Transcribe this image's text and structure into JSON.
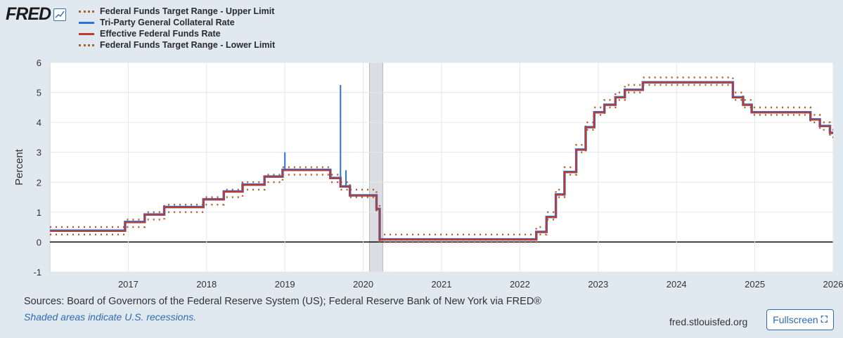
{
  "logo": {
    "text": "FRED"
  },
  "legend": [
    {
      "label": "Federal Funds Target Range - Upper Limit",
      "style": "dotted",
      "color": "#b0602e"
    },
    {
      "label": "Tri-Party General Collateral Rate",
      "style": "solid",
      "color": "#2f6fd6"
    },
    {
      "label": "Effective Federal Funds Rate",
      "style": "solid",
      "color": "#c0392b"
    },
    {
      "label": "Federal Funds Target Range - Lower Limit",
      "style": "dotted",
      "color": "#b0602e"
    }
  ],
  "footer": {
    "sources": "Sources: Board of Governors of the Federal Reserve System (US); Federal Reserve Bank of New York via FRED®",
    "recession_note": "Shaded areas indicate U.S. recessions.",
    "site": "fred.stlouisfed.org",
    "fullscreen_label": "Fullscreen"
  },
  "chart_data": {
    "type": "line",
    "ylabel": "Percent",
    "xlim": [
      2016.0,
      2026.0
    ],
    "ylim": [
      -1,
      6
    ],
    "yticks": [
      "-1",
      "0",
      "1",
      "2",
      "3",
      "4",
      "5",
      "6"
    ],
    "xticks": [
      "2017",
      "2018",
      "2019",
      "2020",
      "2021",
      "2022",
      "2023",
      "2024",
      "2025",
      "2026"
    ],
    "recessions": [
      [
        2020.08,
        2020.25
      ]
    ],
    "rate_steps": [
      {
        "t": 2016.0,
        "upper": 0.5,
        "lower": 0.25,
        "effr": 0.37
      },
      {
        "t": 2016.96,
        "upper": 0.75,
        "lower": 0.5,
        "effr": 0.66
      },
      {
        "t": 2017.21,
        "upper": 1.0,
        "lower": 0.75,
        "effr": 0.91
      },
      {
        "t": 2017.46,
        "upper": 1.25,
        "lower": 1.0,
        "effr": 1.16
      },
      {
        "t": 2017.96,
        "upper": 1.5,
        "lower": 1.25,
        "effr": 1.42
      },
      {
        "t": 2018.22,
        "upper": 1.75,
        "lower": 1.5,
        "effr": 1.68
      },
      {
        "t": 2018.46,
        "upper": 2.0,
        "lower": 1.75,
        "effr": 1.91
      },
      {
        "t": 2018.74,
        "upper": 2.25,
        "lower": 2.0,
        "effr": 2.18
      },
      {
        "t": 2018.97,
        "upper": 2.5,
        "lower": 2.25,
        "effr": 2.4
      },
      {
        "t": 2019.58,
        "upper": 2.25,
        "lower": 2.0,
        "effr": 2.13
      },
      {
        "t": 2019.71,
        "upper": 2.0,
        "lower": 1.75,
        "effr": 1.85
      },
      {
        "t": 2019.83,
        "upper": 1.75,
        "lower": 1.5,
        "effr": 1.55
      },
      {
        "t": 2020.17,
        "upper": 1.25,
        "lower": 1.0,
        "effr": 1.1
      },
      {
        "t": 2020.21,
        "upper": 0.25,
        "lower": 0.0,
        "effr": 0.08
      },
      {
        "t": 2022.21,
        "upper": 0.5,
        "lower": 0.25,
        "effr": 0.33
      },
      {
        "t": 2022.34,
        "upper": 1.0,
        "lower": 0.75,
        "effr": 0.83
      },
      {
        "t": 2022.46,
        "upper": 1.75,
        "lower": 1.5,
        "effr": 1.58
      },
      {
        "t": 2022.57,
        "upper": 2.5,
        "lower": 2.25,
        "effr": 2.33
      },
      {
        "t": 2022.72,
        "upper": 3.25,
        "lower": 3.0,
        "effr": 3.08
      },
      {
        "t": 2022.84,
        "upper": 4.0,
        "lower": 3.75,
        "effr": 3.83
      },
      {
        "t": 2022.95,
        "upper": 4.5,
        "lower": 4.25,
        "effr": 4.33
      },
      {
        "t": 2023.08,
        "upper": 4.75,
        "lower": 4.5,
        "effr": 4.58
      },
      {
        "t": 2023.22,
        "upper": 5.0,
        "lower": 4.75,
        "effr": 4.83
      },
      {
        "t": 2023.34,
        "upper": 5.25,
        "lower": 5.0,
        "effr": 5.08
      },
      {
        "t": 2023.57,
        "upper": 5.5,
        "lower": 5.25,
        "effr": 5.33
      },
      {
        "t": 2024.72,
        "upper": 5.0,
        "lower": 4.75,
        "effr": 4.83
      },
      {
        "t": 2024.85,
        "upper": 4.75,
        "lower": 4.5,
        "effr": 4.58
      },
      {
        "t": 2024.96,
        "upper": 4.5,
        "lower": 4.25,
        "effr": 4.33
      },
      {
        "t": 2025.71,
        "upper": 4.25,
        "lower": 4.0,
        "effr": 4.09
      },
      {
        "t": 2025.83,
        "upper": 4.0,
        "lower": 3.75,
        "effr": 3.87
      },
      {
        "t": 2025.96,
        "upper": 3.75,
        "lower": 3.5,
        "effr": 3.64
      }
    ],
    "tgcr_spikes": [
      {
        "t": 2019.0,
        "value": 3.0
      },
      {
        "t": 2019.71,
        "value": 5.25
      },
      {
        "t": 2019.78,
        "value": 2.4
      },
      {
        "t": 2020.17,
        "value": 1.25
      }
    ],
    "series_end": 2026.0
  }
}
